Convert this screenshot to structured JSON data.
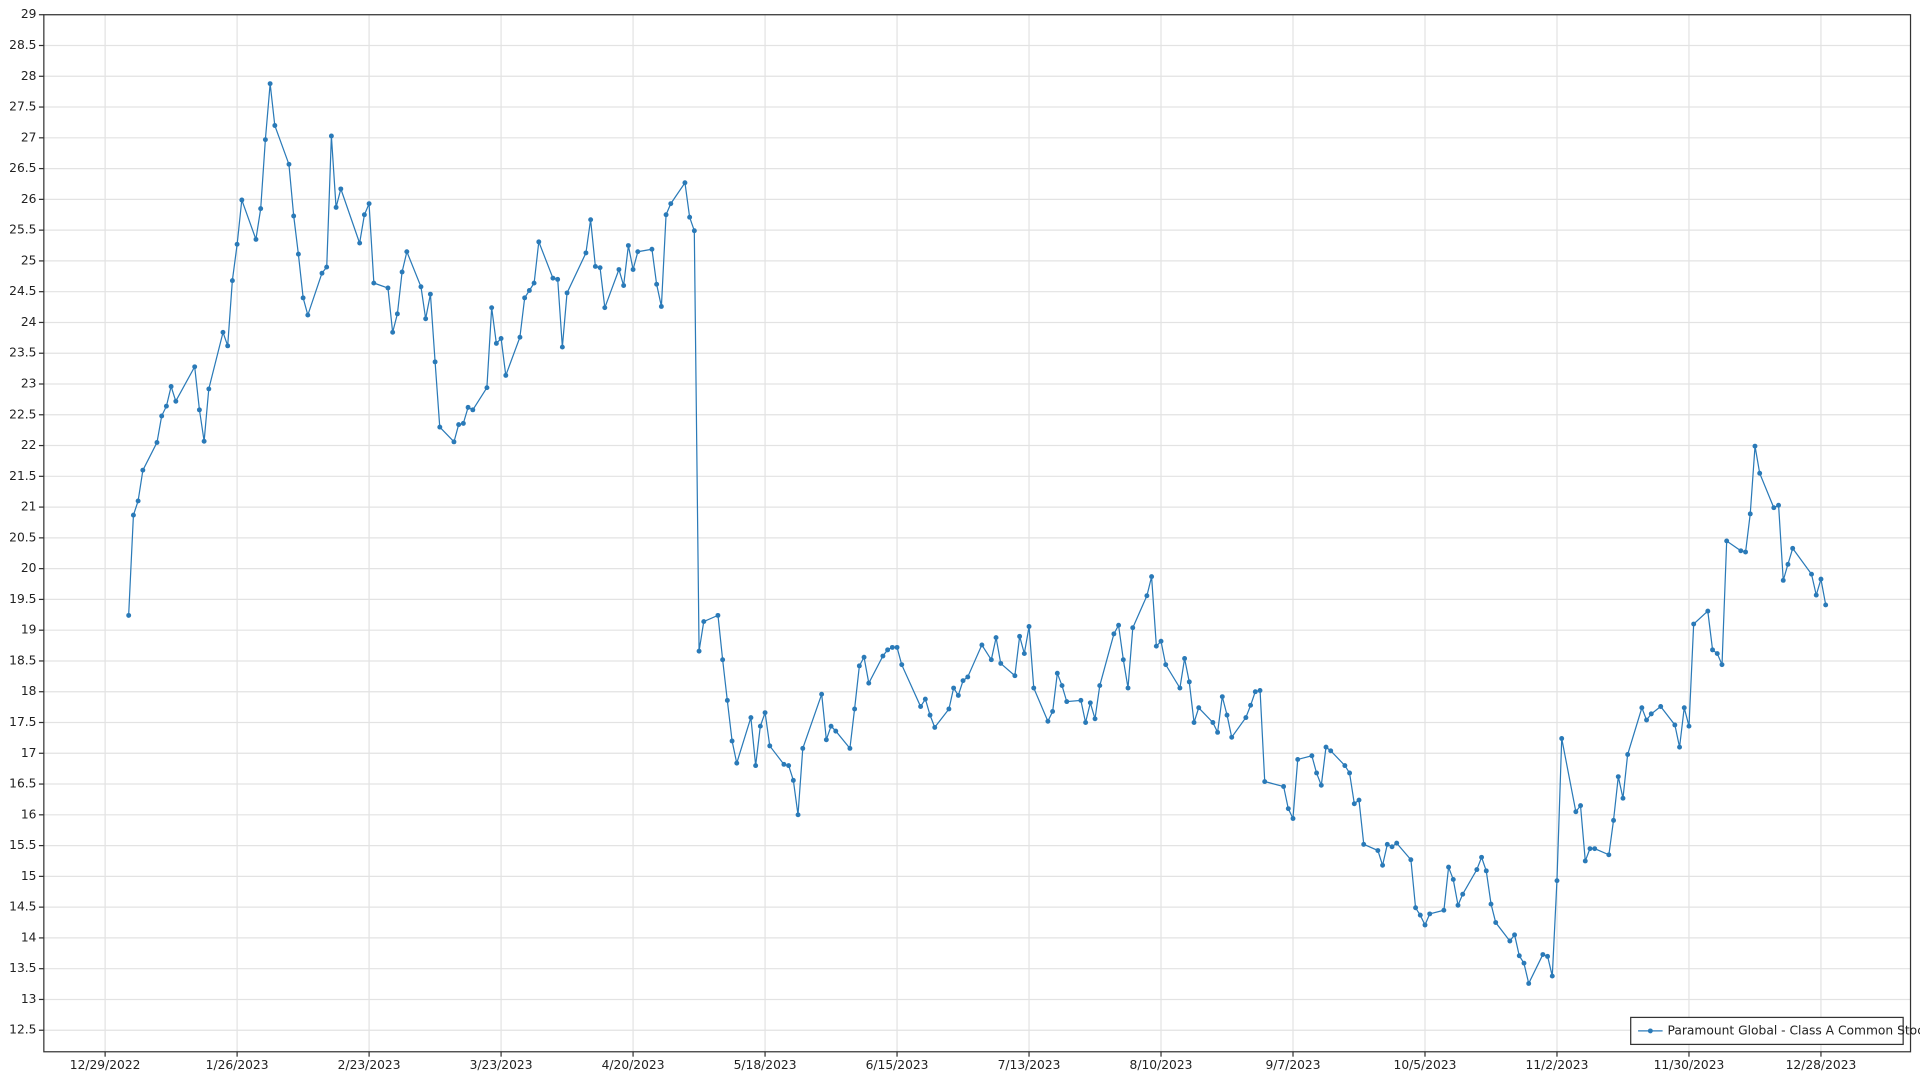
{
  "chart_data": {
    "type": "line",
    "legend": "lower right",
    "grid": true,
    "x": [
      "1/3/2023",
      "1/4/2023",
      "1/5/2023",
      "1/6/2023",
      "1/9/2023",
      "1/10/2023",
      "1/11/2023",
      "1/12/2023",
      "1/13/2023",
      "1/17/2023",
      "1/18/2023",
      "1/19/2023",
      "1/20/2023",
      "1/23/2023",
      "1/24/2023",
      "1/25/2023",
      "1/26/2023",
      "1/27/2023",
      "1/30/2023",
      "1/31/2023",
      "2/1/2023",
      "2/2/2023",
      "2/3/2023",
      "2/6/2023",
      "2/7/2023",
      "2/8/2023",
      "2/9/2023",
      "2/10/2023",
      "2/13/2023",
      "2/14/2023",
      "2/15/2023",
      "2/16/2023",
      "2/17/2023",
      "2/21/2023",
      "2/22/2023",
      "2/23/2023",
      "2/24/2023",
      "2/27/2023",
      "2/28/2023",
      "3/1/2023",
      "3/2/2023",
      "3/3/2023",
      "3/6/2023",
      "3/7/2023",
      "3/8/2023",
      "3/9/2023",
      "3/10/2023",
      "3/13/2023",
      "3/14/2023",
      "3/15/2023",
      "3/16/2023",
      "3/17/2023",
      "3/20/2023",
      "3/21/2023",
      "3/22/2023",
      "3/23/2023",
      "3/24/2023",
      "3/27/2023",
      "3/28/2023",
      "3/29/2023",
      "3/30/2023",
      "3/31/2023",
      "4/3/2023",
      "4/4/2023",
      "4/5/2023",
      "4/6/2023",
      "4/10/2023",
      "4/11/2023",
      "4/12/2023",
      "4/13/2023",
      "4/14/2023",
      "4/17/2023",
      "4/18/2023",
      "4/19/2023",
      "4/20/2023",
      "4/21/2023",
      "4/24/2023",
      "4/25/2023",
      "4/26/2023",
      "4/27/2023",
      "4/28/2023",
      "5/1/2023",
      "5/2/2023",
      "5/3/2023",
      "5/4/2023",
      "5/5/2023",
      "5/8/2023",
      "5/9/2023",
      "5/10/2023",
      "5/11/2023",
      "5/12/2023",
      "5/15/2023",
      "5/16/2023",
      "5/17/2023",
      "5/18/2023",
      "5/19/2023",
      "5/22/2023",
      "5/23/2023",
      "5/24/2023",
      "5/25/2023",
      "5/26/2023",
      "5/30/2023",
      "5/31/2023",
      "6/1/2023",
      "6/2/2023",
      "6/5/2023",
      "6/6/2023",
      "6/7/2023",
      "6/8/2023",
      "6/9/2023",
      "6/12/2023",
      "6/13/2023",
      "6/14/2023",
      "6/15/2023",
      "6/16/2023",
      "6/20/2023",
      "6/21/2023",
      "6/22/2023",
      "6/23/2023",
      "6/26/2023",
      "6/27/2023",
      "6/28/2023",
      "6/29/2023",
      "6/30/2023",
      "7/3/2023",
      "7/5/2023",
      "7/6/2023",
      "7/7/2023",
      "7/10/2023",
      "7/11/2023",
      "7/12/2023",
      "7/13/2023",
      "7/14/2023",
      "7/17/2023",
      "7/18/2023",
      "7/19/2023",
      "7/20/2023",
      "7/21/2023",
      "7/24/2023",
      "7/25/2023",
      "7/26/2023",
      "7/27/2023",
      "7/28/2023",
      "7/31/2023",
      "8/1/2023",
      "8/2/2023",
      "8/3/2023",
      "8/4/2023",
      "8/7/2023",
      "8/8/2023",
      "8/9/2023",
      "8/10/2023",
      "8/11/2023",
      "8/14/2023",
      "8/15/2023",
      "8/16/2023",
      "8/17/2023",
      "8/18/2023",
      "8/21/2023",
      "8/22/2023",
      "8/23/2023",
      "8/24/2023",
      "8/25/2023",
      "8/28/2023",
      "8/29/2023",
      "8/30/2023",
      "8/31/2023",
      "9/1/2023",
      "9/5/2023",
      "9/6/2023",
      "9/7/2023",
      "9/8/2023",
      "9/11/2023",
      "9/12/2023",
      "9/13/2023",
      "9/14/2023",
      "9/15/2023",
      "9/18/2023",
      "9/19/2023",
      "9/20/2023",
      "9/21/2023",
      "9/22/2023",
      "9/25/2023",
      "9/26/2023",
      "9/27/2023",
      "9/28/2023",
      "9/29/2023",
      "10/2/2023",
      "10/3/2023",
      "10/4/2023",
      "10/5/2023",
      "10/6/2023",
      "10/9/2023",
      "10/10/2023",
      "10/11/2023",
      "10/12/2023",
      "10/13/2023",
      "10/16/2023",
      "10/17/2023",
      "10/18/2023",
      "10/19/2023",
      "10/20/2023",
      "10/23/2023",
      "10/24/2023",
      "10/25/2023",
      "10/26/2023",
      "10/27/2023",
      "10/30/2023",
      "10/31/2023",
      "11/1/2023",
      "11/2/2023",
      "11/3/2023",
      "11/6/2023",
      "11/7/2023",
      "11/8/2023",
      "11/9/2023",
      "11/10/2023",
      "11/13/2023",
      "11/14/2023",
      "11/15/2023",
      "11/16/2023",
      "11/17/2023",
      "11/20/2023",
      "11/21/2023",
      "11/22/2023",
      "11/24/2023",
      "11/27/2023",
      "11/28/2023",
      "11/29/2023",
      "11/30/2023",
      "12/1/2023",
      "12/4/2023",
      "12/5/2023",
      "12/6/2023",
      "12/7/2023",
      "12/8/2023",
      "12/11/2023",
      "12/12/2023",
      "12/13/2023",
      "12/14/2023",
      "12/15/2023",
      "12/18/2023",
      "12/19/2023",
      "12/20/2023",
      "12/21/2023",
      "12/22/2023",
      "12/26/2023",
      "12/27/2023",
      "12/28/2023",
      "12/29/2023"
    ],
    "series": [
      {
        "name": "Paramount Global - Class A Common Stock",
        "color": "#2a7ab8",
        "values": [
          19.24,
          20.87,
          21.1,
          21.6,
          22.05,
          22.48,
          22.64,
          22.96,
          22.72,
          23.28,
          22.58,
          22.07,
          22.92,
          23.84,
          23.62,
          24.68,
          25.27,
          25.99,
          25.35,
          25.85,
          26.97,
          27.88,
          27.2,
          26.57,
          25.73,
          25.11,
          24.4,
          24.12,
          24.8,
          24.9,
          27.03,
          25.87,
          26.17,
          25.29,
          25.75,
          25.93,
          24.64,
          24.56,
          23.84,
          24.14,
          24.82,
          25.15,
          24.58,
          24.06,
          24.46,
          23.36,
          22.3,
          22.06,
          22.34,
          22.36,
          22.62,
          22.58,
          22.94,
          24.24,
          23.66,
          23.74,
          23.14,
          23.76,
          24.4,
          24.52,
          24.64,
          25.31,
          24.72,
          24.7,
          23.6,
          24.48,
          25.13,
          25.67,
          24.91,
          24.89,
          24.24,
          24.86,
          24.6,
          25.25,
          24.86,
          25.15,
          25.19,
          24.62,
          24.26,
          25.75,
          25.93,
          26.27,
          25.71,
          25.49,
          18.66,
          19.14,
          19.24,
          18.52,
          17.86,
          17.2,
          16.84,
          17.58,
          16.8,
          17.44,
          17.66,
          17.12,
          16.82,
          16.8,
          16.56,
          16.0,
          17.08,
          17.96,
          17.22,
          17.44,
          17.36,
          17.08,
          17.72,
          18.42,
          18.56,
          18.14,
          18.58,
          18.68,
          18.72,
          18.72,
          18.44,
          17.76,
          17.88,
          17.62,
          17.42,
          17.72,
          18.06,
          17.94,
          18.18,
          18.24,
          18.76,
          18.52,
          18.88,
          18.46,
          18.26,
          18.9,
          18.62,
          19.06,
          18.06,
          17.52,
          17.68,
          18.3,
          18.1,
          17.84,
          17.86,
          17.5,
          17.82,
          17.56,
          18.1,
          18.94,
          19.08,
          18.52,
          18.06,
          19.04,
          19.56,
          19.87,
          18.74,
          18.82,
          18.44,
          18.06,
          18.54,
          18.16,
          17.5,
          17.74,
          17.5,
          17.34,
          17.92,
          17.62,
          17.26,
          17.58,
          17.78,
          18.0,
          18.02,
          16.54,
          16.46,
          16.1,
          15.94,
          16.9,
          16.96,
          16.68,
          16.48,
          17.1,
          17.04,
          16.8,
          16.68,
          16.18,
          16.24,
          15.52,
          15.42,
          15.18,
          15.52,
          15.48,
          15.54,
          15.27,
          14.49,
          14.37,
          14.21,
          14.39,
          14.45,
          15.15,
          14.95,
          14.53,
          14.71,
          15.11,
          15.31,
          15.09,
          14.55,
          14.25,
          13.95,
          14.05,
          13.71,
          13.59,
          13.26,
          13.73,
          13.7,
          13.38,
          14.93,
          17.24,
          16.05,
          16.15,
          15.25,
          15.45,
          15.45,
          15.35,
          15.91,
          16.62,
          16.27,
          16.98,
          17.74,
          17.54,
          17.64,
          17.76,
          17.46,
          17.1,
          17.74,
          17.44,
          19.1,
          19.31,
          18.68,
          18.62,
          18.44,
          20.45,
          20.29,
          20.27,
          20.89,
          21.99,
          21.55,
          20.99,
          21.03,
          19.81,
          20.07,
          20.33,
          19.91,
          19.57,
          19.83,
          19.41
        ]
      }
    ],
    "xlim": [
      "12/16/2022",
      "1/16/2024"
    ],
    "xticks": [
      "12/29/2022",
      "1/26/2023",
      "2/23/2023",
      "3/23/2023",
      "4/20/2023",
      "5/18/2023",
      "6/15/2023",
      "7/13/2023",
      "8/10/2023",
      "9/7/2023",
      "10/5/2023",
      "11/2/2023",
      "11/30/2023",
      "12/28/2023"
    ],
    "ylim": [
      12.15,
      29
    ],
    "yticks": [
      12.5,
      13,
      13.5,
      14,
      14.5,
      15,
      15.5,
      16,
      16.5,
      17,
      17.5,
      18,
      18.5,
      19,
      19.5,
      20,
      20.5,
      21,
      21.5,
      22,
      22.5,
      23,
      23.5,
      24,
      24.5,
      25,
      25.5,
      26,
      26.5,
      27,
      27.5,
      28,
      28.5,
      29
    ]
  }
}
